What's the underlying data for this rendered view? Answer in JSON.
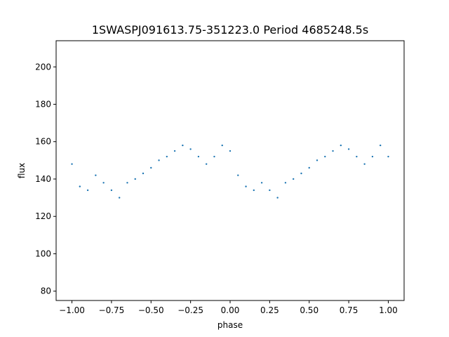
{
  "chart_data": {
    "type": "scatter",
    "title": "1SWASPJ091613.75-351223.0 Period 4685248.5s",
    "xlabel": "phase",
    "ylabel": "flux",
    "xlim": [
      -1.1,
      1.1
    ],
    "ylim": [
      75,
      214
    ],
    "xticks": [
      -1.0,
      -0.75,
      -0.5,
      -0.25,
      0.0,
      0.25,
      0.5,
      0.75,
      1.0
    ],
    "xtick_labels": [
      "−1.00",
      "−0.75",
      "−0.50",
      "−0.25",
      "0.00",
      "0.25",
      "0.50",
      "0.75",
      "1.00"
    ],
    "yticks": [
      80,
      100,
      120,
      140,
      160,
      180,
      200
    ],
    "ytick_labels": [
      "80",
      "100",
      "120",
      "140",
      "160",
      "180",
      "200"
    ],
    "grid": false,
    "series_color": "#1f77b4",
    "series": [
      {
        "x": [
          -1.0,
          -0.95,
          -0.9,
          -0.85,
          -0.8,
          -0.75,
          -0.7,
          -0.65,
          -0.6,
          -0.55,
          -0.5,
          -0.45,
          -0.4,
          -0.35,
          -0.3,
          -0.25,
          -0.2,
          -0.15,
          -0.1,
          -0.05,
          0.0,
          0.05,
          0.1,
          0.15,
          0.2,
          0.25,
          0.3,
          0.35,
          0.4,
          0.45,
          0.5,
          0.55,
          0.6,
          0.65,
          0.7,
          0.75,
          0.8,
          0.85,
          0.9,
          0.95,
          1.0
        ],
        "y": [
          148,
          136,
          134,
          142,
          138,
          134,
          130,
          138,
          140,
          143,
          146,
          150,
          152,
          155,
          158,
          156,
          152,
          148,
          152,
          158,
          155,
          142,
          136,
          134,
          138,
          134,
          130,
          138,
          140,
          143,
          146,
          150,
          152,
          155,
          158,
          156,
          152,
          148,
          152,
          158,
          152
        ]
      }
    ]
  }
}
